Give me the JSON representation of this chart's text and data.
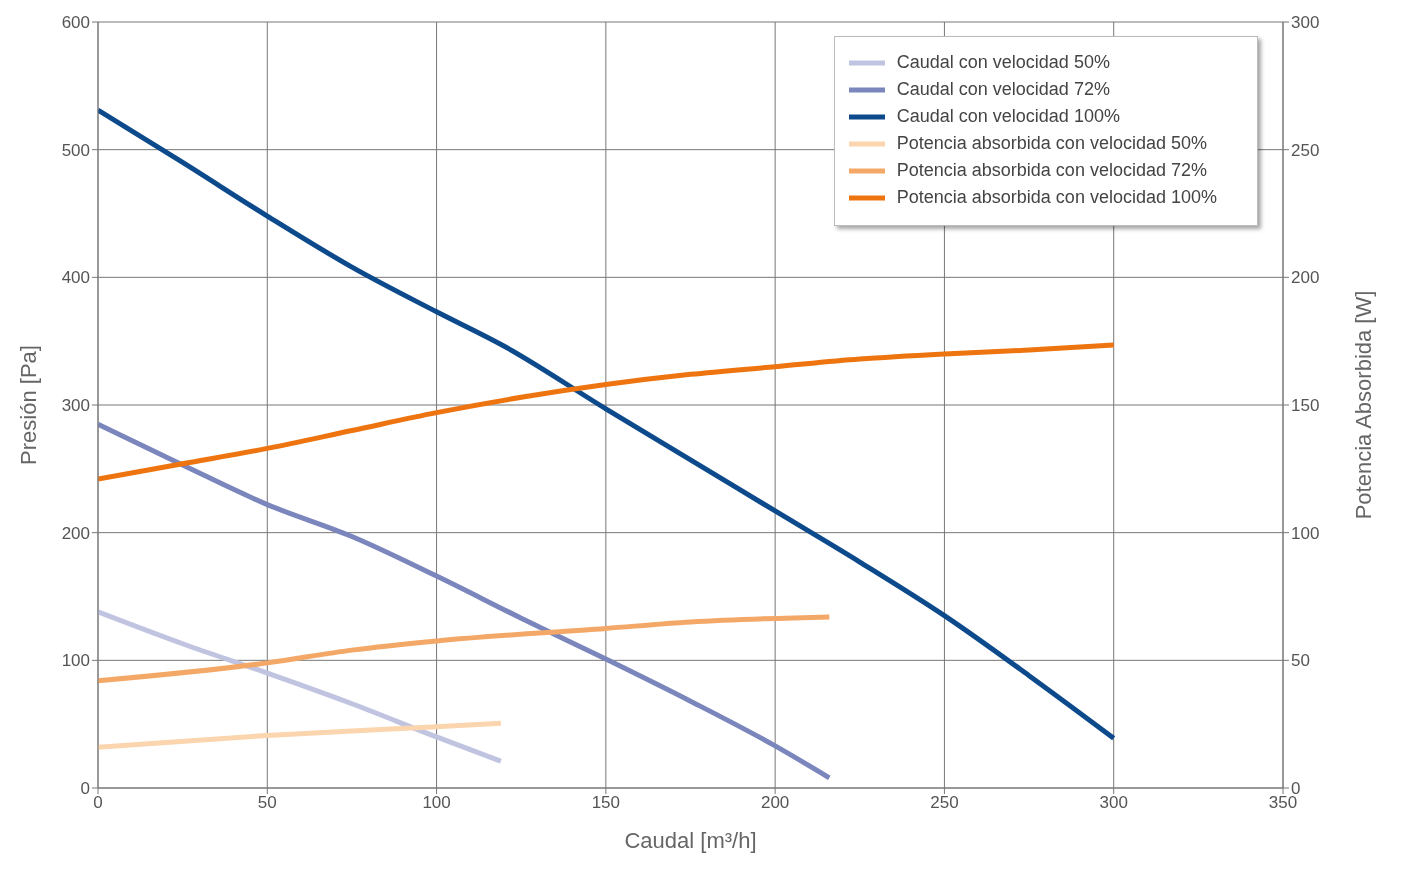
{
  "chart_data": {
    "type": "line",
    "xlabel": "Caudal [m³/h]",
    "ylabel": "Presión [Pa]",
    "y2label": "Potencia Absorbida [W]",
    "xlim": [
      0,
      350
    ],
    "xticks": [
      0,
      50,
      100,
      150,
      200,
      250,
      300,
      350
    ],
    "ylim": [
      0,
      600
    ],
    "yticks": [
      0,
      100,
      200,
      300,
      400,
      500,
      600
    ],
    "y2lim": [
      0,
      300
    ],
    "y2ticks": [
      0,
      50,
      100,
      150,
      200,
      250,
      300
    ],
    "grid": true,
    "legend": "top right",
    "marker": "none",
    "line_style": "solid",
    "series": [
      {
        "name": "Caudal con velocidad 50%",
        "color": "#c0c4e0",
        "x": [
          0,
          25,
          50,
          75,
          100,
          119
        ],
        "values": [
          138,
          113,
          90,
          66,
          40,
          21
        ]
      },
      {
        "name": "Caudal con velocidad 72%",
        "color": "#7b86bd",
        "x": [
          0,
          25,
          50,
          75,
          100,
          125,
          150,
          175,
          200,
          216
        ],
        "values": [
          285,
          253,
          222,
          197,
          166,
          133,
          101,
          68,
          33,
          8
        ]
      },
      {
        "name": "Caudal con velocidad 100%",
        "color": "#0d4a8c",
        "x": [
          0,
          25,
          50,
          75,
          100,
          120,
          150,
          175,
          200,
          225,
          250,
          275,
          300
        ],
        "values": [
          531,
          490,
          448,
          408,
          373,
          346,
          297,
          257,
          217,
          177,
          135,
          88,
          39
        ]
      },
      {
        "name": "Potencia absorbida con velocidad 50%",
        "color": "#fbd5ae",
        "axis": "y2",
        "x": [
          0,
          50,
          100,
          119
        ],
        "values": [
          16,
          20.6,
          24,
          25.4
        ]
      },
      {
        "name": "Potencia absorbida con velocidad 72%",
        "color": "#f4a867",
        "axis": "y2",
        "x": [
          0,
          50,
          75,
          100,
          150,
          175,
          216
        ],
        "values": [
          42,
          49,
          54,
          57.6,
          62.5,
          65,
          67
        ]
      },
      {
        "name": "Potencia absorbida con velocidad 100%",
        "color": "#ee7410",
        "axis": "y2",
        "x": [
          0,
          25,
          50,
          75,
          100,
          125,
          150,
          175,
          200,
          225,
          250,
          275,
          300
        ],
        "values": [
          121,
          127,
          133,
          140,
          147,
          153,
          158,
          162,
          165,
          168,
          170,
          171.5,
          173.5
        ]
      }
    ]
  }
}
